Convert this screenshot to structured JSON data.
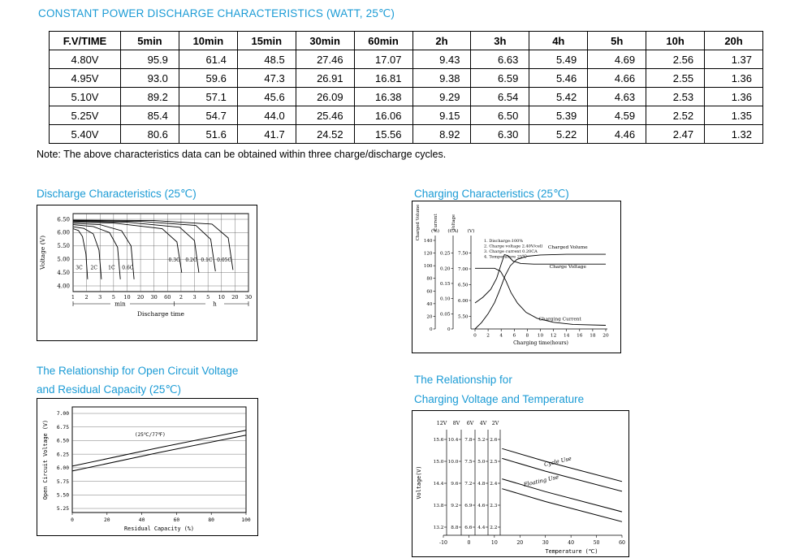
{
  "page": {
    "title": "CONSTANT POWER DISCHARGE CHARACTERISTICS (WATT, 25℃)",
    "note": "Note: The above characteristics data can be obtained within three charge/discharge cycles.",
    "accent_color": "#1b9bd5"
  },
  "table": {
    "headers": [
      "F.V/TIME",
      "5min",
      "10min",
      "15min",
      "30min",
      "60min",
      "2h",
      "3h",
      "4h",
      "5h",
      "10h",
      "20h"
    ],
    "rows": [
      [
        "4.80V",
        "95.9",
        "61.4",
        "48.5",
        "27.46",
        "17.07",
        "9.43",
        "6.63",
        "5.49",
        "4.69",
        "2.56",
        "1.37"
      ],
      [
        "4.95V",
        "93.0",
        "59.6",
        "47.3",
        "26.91",
        "16.81",
        "9.38",
        "6.59",
        "5.46",
        "4.66",
        "2.55",
        "1.36"
      ],
      [
        "5.10V",
        "89.2",
        "57.1",
        "45.6",
        "26.09",
        "16.38",
        "9.29",
        "6.54",
        "5.42",
        "4.63",
        "2.53",
        "1.36"
      ],
      [
        "5.25V",
        "85.4",
        "54.7",
        "44.0",
        "25.46",
        "16.06",
        "9.15",
        "6.50",
        "5.39",
        "4.59",
        "2.52",
        "1.35"
      ],
      [
        "5.40V",
        "80.6",
        "51.6",
        "41.7",
        "24.52",
        "15.56",
        "8.92",
        "6.30",
        "5.22",
        "4.46",
        "2.47",
        "1.32"
      ]
    ]
  },
  "sections": {
    "discharge_title": "Discharge Characteristics (25℃)",
    "charging_title": "Charging Characteristics (25℃)",
    "ocv_title_line1": "The Relationship for Open Circuit Voltage",
    "ocv_title_line2": "and Residual Capacity (25℃)",
    "cvt_title_line1": "The Relationship for",
    "cvt_title_line2": "Charging Voltage and Temperature"
  },
  "chart_data": [
    {
      "id": "discharge",
      "type": "line",
      "title": "Discharge Characteristics (25℃)",
      "ylabel": "Voltage (V)",
      "xlabel": "Discharge time",
      "yticks": [
        "6.50",
        "6.00",
        "5.50",
        "5.00",
        "4.50",
        "4.00"
      ],
      "ylim": [
        4.0,
        6.5
      ],
      "xticks_min": [
        "1",
        "2",
        "3",
        "5",
        "10",
        "20",
        "30",
        "60"
      ],
      "xticks_h": [
        "2",
        "3",
        "5",
        "10",
        "20",
        "30"
      ],
      "x_group_labels": [
        "min",
        "h"
      ],
      "grid": true,
      "series": [
        {
          "name": "3C",
          "label_at": [
            0.45,
            4.62
          ],
          "points": [
            [
              0,
              6.15
            ],
            [
              0.4,
              6.08
            ],
            [
              0.7,
              5.85
            ],
            [
              0.95,
              5.2
            ],
            [
              1.08,
              4.25
            ]
          ]
        },
        {
          "name": "2C",
          "label_at": [
            1.55,
            4.62
          ],
          "points": [
            [
              0,
              6.22
            ],
            [
              0.8,
              6.16
            ],
            [
              1.5,
              5.95
            ],
            [
              1.92,
              5.35
            ],
            [
              2.1,
              4.25
            ]
          ]
        },
        {
          "name": "1C",
          "label_at": [
            2.85,
            4.62
          ],
          "points": [
            [
              0,
              6.3
            ],
            [
              1.5,
              6.23
            ],
            [
              2.7,
              6.0
            ],
            [
              3.3,
              5.45
            ],
            [
              3.5,
              4.25
            ]
          ]
        },
        {
          "name": "0.6C",
          "label_at": [
            4.05,
            4.62
          ],
          "points": [
            [
              0,
              6.35
            ],
            [
              2,
              6.3
            ],
            [
              3.6,
              6.07
            ],
            [
              4.3,
              5.5
            ],
            [
              4.52,
              4.25
            ]
          ]
        },
        {
          "name": "0.3C",
          "label_at": [
            7.5,
            4.92
          ],
          "points": [
            [
              0,
              6.4
            ],
            [
              3,
              6.36
            ],
            [
              6.6,
              6.15
            ],
            [
              7.7,
              5.65
            ],
            [
              8.05,
              4.5
            ]
          ]
        },
        {
          "name": "0.2C",
          "label_at": [
            8.75,
            4.92
          ],
          "points": [
            [
              0,
              6.43
            ],
            [
              4,
              6.39
            ],
            [
              7.9,
              6.2
            ],
            [
              9.0,
              5.7
            ],
            [
              9.32,
              4.5
            ]
          ]
        },
        {
          "name": "0.1C",
          "label_at": [
            9.9,
            4.92
          ],
          "points": [
            [
              0,
              6.45
            ],
            [
              5,
              6.42
            ],
            [
              9.1,
              6.27
            ],
            [
              10.2,
              5.75
            ],
            [
              10.55,
              4.55
            ]
          ]
        },
        {
          "name": "0.05C",
          "label_at": [
            11.2,
            4.92
          ],
          "points": [
            [
              0,
              6.47
            ],
            [
              6,
              6.45
            ],
            [
              10.3,
              6.32
            ],
            [
              11.5,
              5.8
            ],
            [
              11.85,
              4.6
            ]
          ]
        }
      ]
    },
    {
      "id": "charging",
      "type": "line",
      "title": "Charging Characteristics (25℃)",
      "xlabel": "Charging time(hours)",
      "xticks": [
        "0",
        "2",
        "4",
        "6",
        "8",
        "10",
        "12",
        "14",
        "16",
        "18",
        "20"
      ],
      "axes": [
        {
          "label": "Charged Volume",
          "unit": "(%)",
          "ticks": [
            "140",
            "120",
            "100",
            "80",
            "60",
            "40",
            "20",
            "0"
          ]
        },
        {
          "label": "Current",
          "unit": "(CA)",
          "ticks": [
            "0.25",
            "0.20",
            "0.15",
            "0.10",
            "0.05",
            "0"
          ]
        },
        {
          "label": "Voltage",
          "unit": "(V)",
          "ticks": [
            "7.50",
            "7.00",
            "6.50",
            "6.00",
            "5.50"
          ]
        }
      ],
      "notes": [
        "1. Discharge:100%",
        "2. Charge voltage 2.40V/cell",
        "3. Charge current 0.20CA",
        "4. Temperature 25℃"
      ],
      "series": [
        {
          "name": "Charged Volume",
          "scale": "pct",
          "label_at": [
            14.2,
            127
          ],
          "points": [
            [
              0,
              0
            ],
            [
              1,
              10
            ],
            [
              2,
              24
            ],
            [
              3,
              42
            ],
            [
              3.8,
              62
            ],
            [
              4.6,
              84
            ],
            [
              5.4,
              100
            ],
            [
              6.4,
              110
            ],
            [
              8,
              115
            ],
            [
              10,
              117
            ],
            [
              14,
              118
            ],
            [
              20,
              118
            ]
          ]
        },
        {
          "name": "Charge Voltage",
          "scale": "v",
          "label_at": [
            14.2,
            7.02
          ],
          "points": [
            [
              0,
              5.92
            ],
            [
              1.2,
              6.1
            ],
            [
              2.4,
              6.35
            ],
            [
              3.3,
              6.7
            ],
            [
              4.0,
              7.15
            ],
            [
              4.5,
              7.45
            ],
            [
              5.0,
              7.42
            ],
            [
              5.8,
              7.25
            ],
            [
              7,
              7.17
            ],
            [
              9,
              7.15
            ],
            [
              20,
              7.15
            ]
          ]
        },
        {
          "name": "Charging Current",
          "scale": "ca",
          "label_at": [
            13,
            0.028
          ],
          "points": [
            [
              0,
              0.2
            ],
            [
              3,
              0.2
            ],
            [
              3.9,
              0.19
            ],
            [
              4.7,
              0.16
            ],
            [
              5.5,
              0.12
            ],
            [
              6.5,
              0.085
            ],
            [
              7.8,
              0.055
            ],
            [
              9.5,
              0.035
            ],
            [
              12,
              0.022
            ],
            [
              15,
              0.015
            ],
            [
              20,
              0.012
            ]
          ]
        }
      ]
    },
    {
      "id": "ocv_capacity",
      "type": "line",
      "ylabel": "Open Circuit Voltage (V)",
      "xlabel": "Residual Capacity (%)",
      "yticks": [
        "7.00",
        "6.75",
        "6.50",
        "6.25",
        "6.00",
        "5.75",
        "5.50",
        "5.25"
      ],
      "xticks": [
        "0",
        "20",
        "40",
        "60",
        "80",
        "100"
      ],
      "annotation": "(25℃/77℉)",
      "annotation_at": [
        36,
        6.58
      ],
      "series": [
        {
          "name": "upper",
          "points": [
            [
              0,
              6.03
            ],
            [
              50,
              6.37
            ],
            [
              100,
              6.69
            ]
          ]
        },
        {
          "name": "lower",
          "points": [
            [
              0,
              5.94
            ],
            [
              50,
              6.28
            ],
            [
              100,
              6.6
            ]
          ]
        }
      ]
    },
    {
      "id": "charge_voltage_temperature",
      "type": "line",
      "ylabel": "Voltage(V)",
      "xlabel": "Temperature (℃)",
      "scale_headers": [
        "12V",
        "8V",
        "6V",
        "4V",
        "2V"
      ],
      "scale_rows": [
        [
          "15.6",
          "10.4",
          "7.8",
          "5.2",
          "2.6"
        ],
        [
          "15.0",
          "10.0",
          "7.5",
          "5.0",
          "2.5"
        ],
        [
          "14.4",
          "9.6",
          "7.2",
          "4.8",
          "2.4"
        ],
        [
          "13.8",
          "9.2",
          "6.9",
          "4.6",
          "2.3"
        ],
        [
          "13.2",
          "8.8",
          "6.6",
          "4.4",
          "2.2"
        ]
      ],
      "xticks": [
        "-10",
        "0",
        "10",
        "20",
        "30",
        "40",
        "50",
        "60"
      ],
      "bands": [
        {
          "name": "Cycle Use",
          "label_at": [
            35,
            14.95
          ],
          "lines": [
            [
              [
                13,
                15.35
              ],
              [
                30,
                15.0
              ],
              [
                60,
                14.45
              ]
            ],
            [
              [
                13,
                15.08
              ],
              [
                30,
                14.73
              ],
              [
                60,
                14.18
              ]
            ]
          ]
        },
        {
          "name": "Floating Use",
          "label_at": [
            28.5,
            14.42
          ],
          "lines": [
            [
              [
                13,
                14.52
              ],
              [
                30,
                14.17
              ],
              [
                60,
                13.62
              ]
            ],
            [
              [
                13,
                14.25
              ],
              [
                30,
                13.9
              ],
              [
                60,
                13.35
              ]
            ]
          ]
        }
      ]
    }
  ]
}
